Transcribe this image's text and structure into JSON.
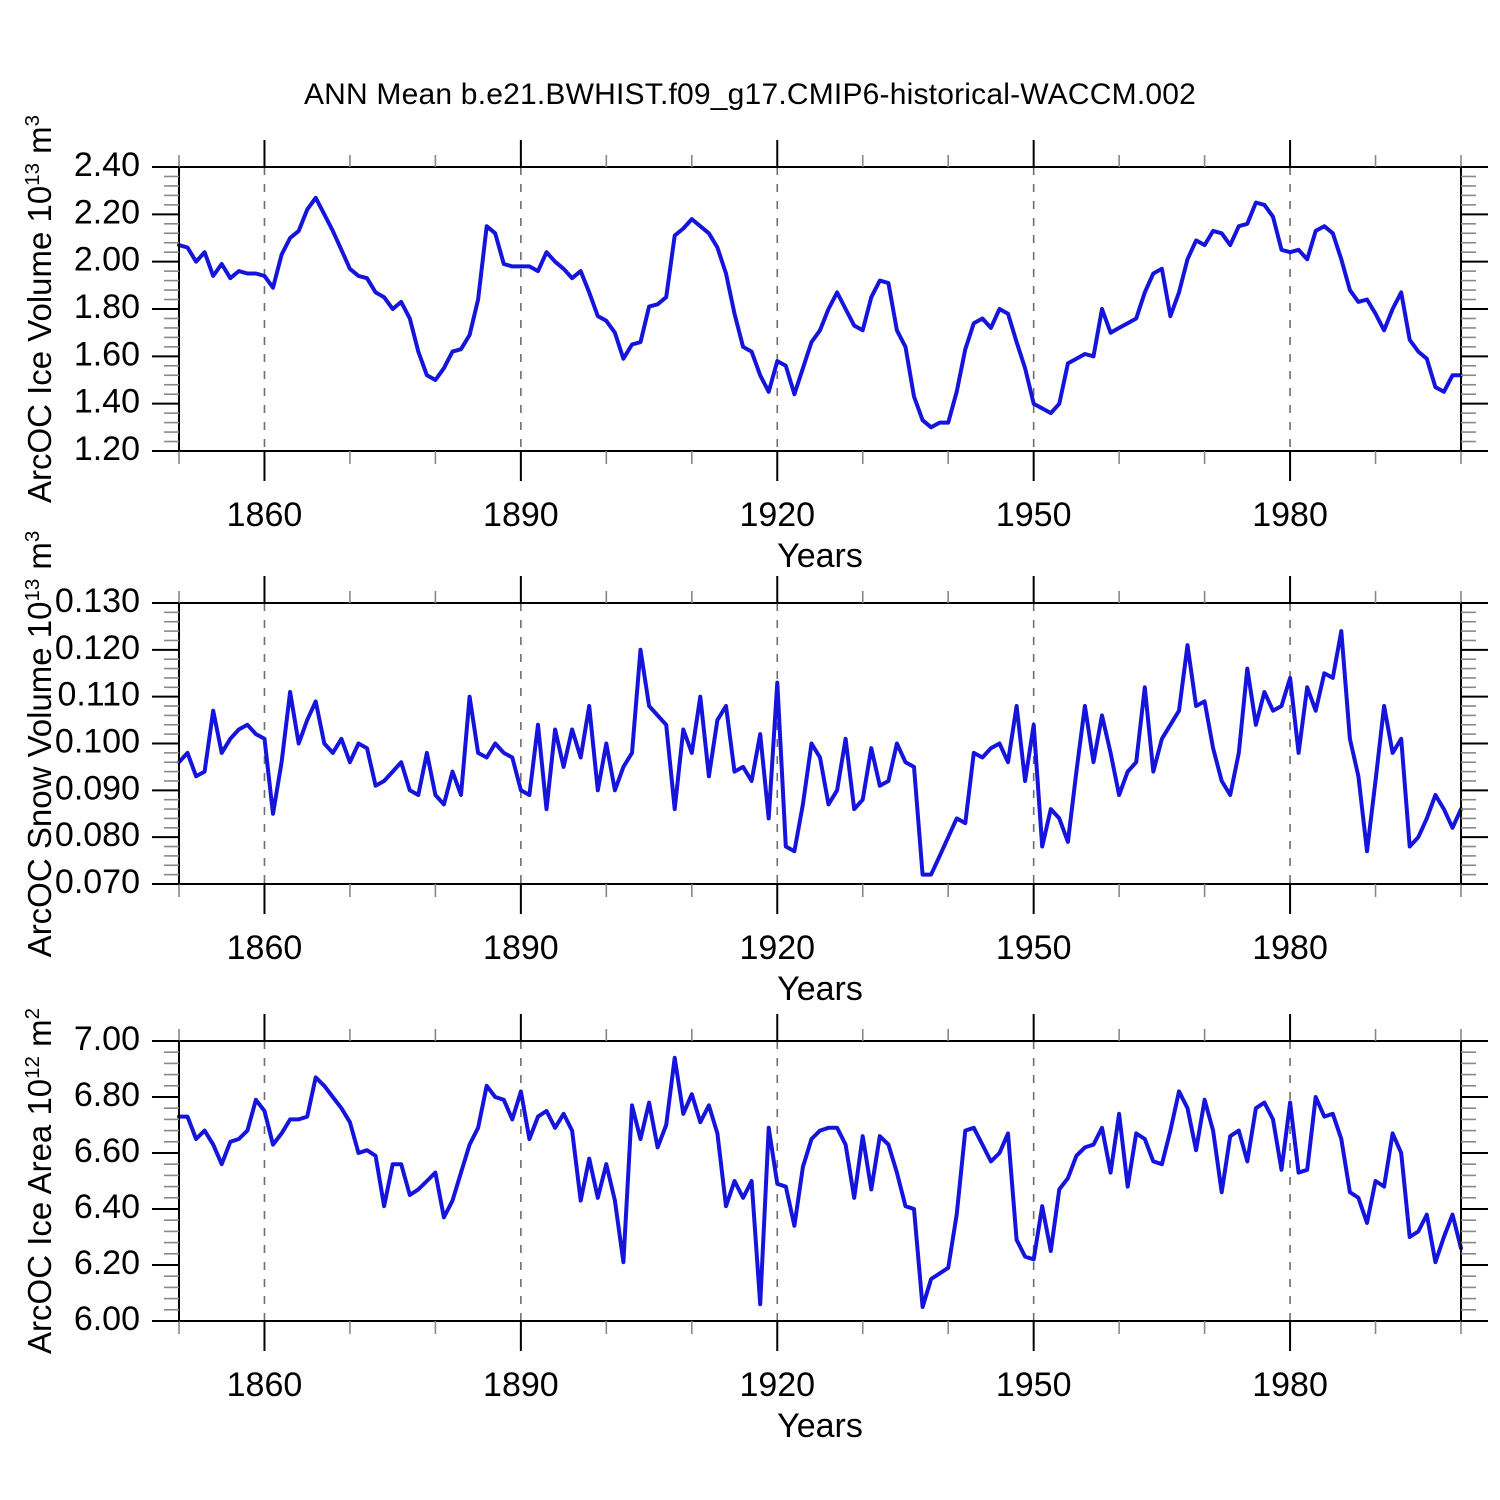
{
  "page": {
    "title": "ANN Mean b.e21.BWHIST.f09_g17.CMIP6-historical-WACCM.002",
    "background": "#ffffff"
  },
  "style": {
    "line_color": "#1414dc",
    "axis_color": "#000000",
    "major_tick_color": "#000000",
    "minor_tick_color": "#888888",
    "grid_color": "#6e6e6e"
  },
  "chart_data": [
    {
      "type": "line",
      "id": "ice-volume",
      "ylabel": "ArcOC Ice Volume 10^13 m^3",
      "xlabel": "Years",
      "x_start": 1850,
      "x_step": 1,
      "xlim": [
        1850,
        2000
      ],
      "ylim": [
        1.2,
        2.4
      ],
      "ytick_step": 0.2,
      "ytick_minor_step": 0.04,
      "ytick_decimals": 2,
      "xticks_major": [
        1860,
        1890,
        1920,
        1950,
        1980
      ],
      "xtick_labels": [
        "1860",
        "1890",
        "1920",
        "1950",
        "1980"
      ],
      "xtick_minor_step": 10,
      "grid_vertical_at": [
        1860,
        1890,
        1920,
        1950,
        1980
      ],
      "values": [
        2.07,
        2.06,
        2.0,
        2.04,
        1.94,
        1.99,
        1.93,
        1.96,
        1.95,
        1.95,
        1.94,
        1.89,
        2.03,
        2.1,
        2.13,
        2.22,
        2.27,
        2.2,
        2.13,
        2.05,
        1.97,
        1.94,
        1.93,
        1.87,
        1.85,
        1.8,
        1.83,
        1.76,
        1.62,
        1.52,
        1.5,
        1.55,
        1.62,
        1.63,
        1.69,
        1.84,
        2.15,
        2.12,
        1.99,
        1.98,
        1.98,
        1.98,
        1.96,
        2.04,
        2.0,
        1.97,
        1.93,
        1.96,
        1.87,
        1.77,
        1.75,
        1.7,
        1.59,
        1.65,
        1.66,
        1.81,
        1.82,
        1.85,
        2.11,
        2.14,
        2.18,
        2.15,
        2.12,
        2.06,
        1.95,
        1.78,
        1.64,
        1.62,
        1.52,
        1.45,
        1.58,
        1.56,
        1.44,
        1.55,
        1.66,
        1.71,
        1.8,
        1.87,
        1.8,
        1.73,
        1.71,
        1.85,
        1.92,
        1.91,
        1.71,
        1.64,
        1.43,
        1.33,
        1.3,
        1.32,
        1.32,
        1.45,
        1.63,
        1.74,
        1.76,
        1.72,
        1.8,
        1.78,
        1.66,
        1.55,
        1.4,
        1.38,
        1.36,
        1.4,
        1.57,
        1.59,
        1.61,
        1.6,
        1.8,
        1.7,
        1.72,
        1.74,
        1.76,
        1.87,
        1.95,
        1.97,
        1.77,
        1.87,
        2.01,
        2.09,
        2.07,
        2.13,
        2.12,
        2.07,
        2.15,
        2.16,
        2.25,
        2.24,
        2.19,
        2.05,
        2.04,
        2.05,
        2.01,
        2.13,
        2.15,
        2.12,
        2.01,
        1.88,
        1.83,
        1.84,
        1.78,
        1.71,
        1.8,
        1.87,
        1.67,
        1.62,
        1.59,
        1.47,
        1.45,
        1.52,
        1.52
      ]
    },
    {
      "type": "line",
      "id": "snow-volume",
      "ylabel": "ArcOC Snow Volume 10^13 m^3",
      "xlabel": "Years",
      "x_start": 1850,
      "x_step": 1,
      "xlim": [
        1850,
        2000
      ],
      "ylim": [
        0.07,
        0.13
      ],
      "ytick_step": 0.01,
      "ytick_minor_step": 0.002,
      "ytick_decimals": 3,
      "xticks_major": [
        1860,
        1890,
        1920,
        1950,
        1980
      ],
      "xtick_labels": [
        "1860",
        "1890",
        "1920",
        "1950",
        "1980"
      ],
      "xtick_minor_step": 10,
      "grid_vertical_at": [
        1860,
        1890,
        1920,
        1950,
        1980
      ],
      "values": [
        0.096,
        0.098,
        0.093,
        0.094,
        0.107,
        0.098,
        0.101,
        0.103,
        0.104,
        0.102,
        0.101,
        0.085,
        0.096,
        0.111,
        0.1,
        0.105,
        0.109,
        0.1,
        0.098,
        0.101,
        0.096,
        0.1,
        0.099,
        0.091,
        0.092,
        0.094,
        0.096,
        0.09,
        0.089,
        0.098,
        0.089,
        0.087,
        0.094,
        0.089,
        0.11,
        0.098,
        0.097,
        0.1,
        0.098,
        0.097,
        0.09,
        0.089,
        0.104,
        0.086,
        0.103,
        0.095,
        0.103,
        0.097,
        0.108,
        0.09,
        0.1,
        0.09,
        0.095,
        0.098,
        0.12,
        0.108,
        0.106,
        0.104,
        0.086,
        0.103,
        0.098,
        0.11,
        0.093,
        0.105,
        0.108,
        0.094,
        0.095,
        0.092,
        0.102,
        0.084,
        0.113,
        0.078,
        0.077,
        0.087,
        0.1,
        0.097,
        0.087,
        0.09,
        0.101,
        0.086,
        0.088,
        0.099,
        0.091,
        0.092,
        0.1,
        0.096,
        0.095,
        0.072,
        0.072,
        0.076,
        0.08,
        0.084,
        0.083,
        0.098,
        0.097,
        0.099,
        0.1,
        0.096,
        0.108,
        0.092,
        0.104,
        0.078,
        0.086,
        0.084,
        0.079,
        0.094,
        0.108,
        0.096,
        0.106,
        0.098,
        0.089,
        0.094,
        0.096,
        0.112,
        0.094,
        0.101,
        0.104,
        0.107,
        0.121,
        0.108,
        0.109,
        0.099,
        0.092,
        0.089,
        0.098,
        0.116,
        0.104,
        0.111,
        0.107,
        0.108,
        0.114,
        0.098,
        0.112,
        0.107,
        0.115,
        0.114,
        0.124,
        0.101,
        0.093,
        0.077,
        0.092,
        0.108,
        0.098,
        0.101,
        0.078,
        0.08,
        0.084,
        0.089,
        0.086,
        0.082,
        0.086
      ]
    },
    {
      "type": "line",
      "id": "ice-area",
      "ylabel": "ArcOC Ice Area 10^12 m^2",
      "xlabel": "Years",
      "x_start": 1850,
      "x_step": 1,
      "xlim": [
        1850,
        2000
      ],
      "ylim": [
        6.0,
        7.0
      ],
      "ytick_step": 0.2,
      "ytick_minor_step": 0.04,
      "ytick_decimals": 2,
      "xticks_major": [
        1860,
        1890,
        1920,
        1950,
        1980
      ],
      "xtick_labels": [
        "1860",
        "1890",
        "1920",
        "1950",
        "1980"
      ],
      "xtick_minor_step": 10,
      "grid_vertical_at": [
        1860,
        1890,
        1920,
        1950,
        1980
      ],
      "values": [
        6.73,
        6.73,
        6.65,
        6.68,
        6.63,
        6.56,
        6.64,
        6.65,
        6.68,
        6.79,
        6.75,
        6.63,
        6.67,
        6.72,
        6.72,
        6.73,
        6.87,
        6.84,
        6.8,
        6.76,
        6.71,
        6.6,
        6.61,
        6.59,
        6.41,
        6.56,
        6.56,
        6.45,
        6.47,
        6.5,
        6.53,
        6.37,
        6.43,
        6.53,
        6.63,
        6.69,
        6.84,
        6.8,
        6.79,
        6.72,
        6.82,
        6.65,
        6.73,
        6.75,
        6.69,
        6.74,
        6.68,
        6.43,
        6.58,
        6.44,
        6.56,
        6.43,
        6.21,
        6.77,
        6.65,
        6.78,
        6.62,
        6.7,
        6.94,
        6.74,
        6.81,
        6.71,
        6.77,
        6.67,
        6.41,
        6.5,
        6.44,
        6.5,
        6.06,
        6.69,
        6.49,
        6.48,
        6.34,
        6.55,
        6.65,
        6.68,
        6.69,
        6.69,
        6.63,
        6.44,
        6.66,
        6.47,
        6.66,
        6.63,
        6.53,
        6.41,
        6.4,
        6.05,
        6.15,
        6.17,
        6.19,
        6.38,
        6.68,
        6.69,
        6.63,
        6.57,
        6.6,
        6.67,
        6.29,
        6.23,
        6.22,
        6.41,
        6.25,
        6.47,
        6.51,
        6.59,
        6.62,
        6.63,
        6.69,
        6.53,
        6.74,
        6.48,
        6.67,
        6.65,
        6.57,
        6.56,
        6.68,
        6.82,
        6.76,
        6.61,
        6.79,
        6.68,
        6.46,
        6.66,
        6.68,
        6.57,
        6.76,
        6.78,
        6.72,
        6.54,
        6.78,
        6.53,
        6.54,
        6.8,
        6.73,
        6.74,
        6.65,
        6.46,
        6.44,
        6.35,
        6.5,
        6.48,
        6.67,
        6.6,
        6.3,
        6.32,
        6.38,
        6.21,
        6.3,
        6.38,
        6.26
      ]
    }
  ]
}
